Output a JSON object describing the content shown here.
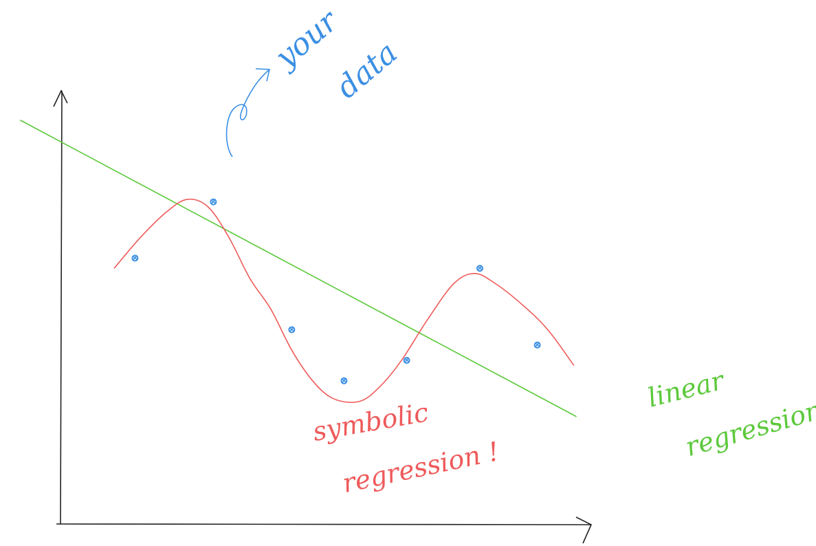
{
  "colors": {
    "data_points": "#3b8fe3",
    "symbolic_curve": "#ef5a5a",
    "linear_line": "#5cc93b",
    "axes": "#222222"
  },
  "annotations": {
    "data": [
      "your",
      "data"
    ],
    "symbolic": [
      "symbolic",
      "regression !"
    ],
    "linear": [
      "linear",
      "regression"
    ]
  },
  "chart_data": {
    "type": "scatter",
    "title": "",
    "xlabel": "",
    "ylabel": "",
    "points": [
      {
        "x": 1.4,
        "y": 5.2
      },
      {
        "x": 2.9,
        "y": 6.3
      },
      {
        "x": 4.4,
        "y": 3.8
      },
      {
        "x": 5.4,
        "y": 2.8
      },
      {
        "x": 6.6,
        "y": 3.2
      },
      {
        "x": 8.0,
        "y": 5.0
      },
      {
        "x": 9.1,
        "y": 3.5
      }
    ],
    "symbolic_curve": [
      [
        1.0,
        5.0
      ],
      [
        1.5,
        5.6
      ],
      [
        2.0,
        6.1
      ],
      [
        2.4,
        6.35
      ],
      [
        2.8,
        6.2
      ],
      [
        3.2,
        5.6
      ],
      [
        3.6,
        4.8
      ],
      [
        4.0,
        4.2
      ],
      [
        4.4,
        3.4
      ],
      [
        4.8,
        2.8
      ],
      [
        5.2,
        2.45
      ],
      [
        5.7,
        2.4
      ],
      [
        6.1,
        2.7
      ],
      [
        6.5,
        3.2
      ],
      [
        7.0,
        4.0
      ],
      [
        7.5,
        4.7
      ],
      [
        7.9,
        4.9
      ],
      [
        8.3,
        4.7
      ],
      [
        8.8,
        4.3
      ],
      [
        9.3,
        3.8
      ],
      [
        9.8,
        3.1
      ]
    ],
    "linear_regression": [
      [
        -0.8,
        7.9
      ],
      [
        9.85,
        2.1
      ]
    ],
    "xlim": [
      0,
      10
    ],
    "ylim": [
      0,
      8.5
    ]
  }
}
